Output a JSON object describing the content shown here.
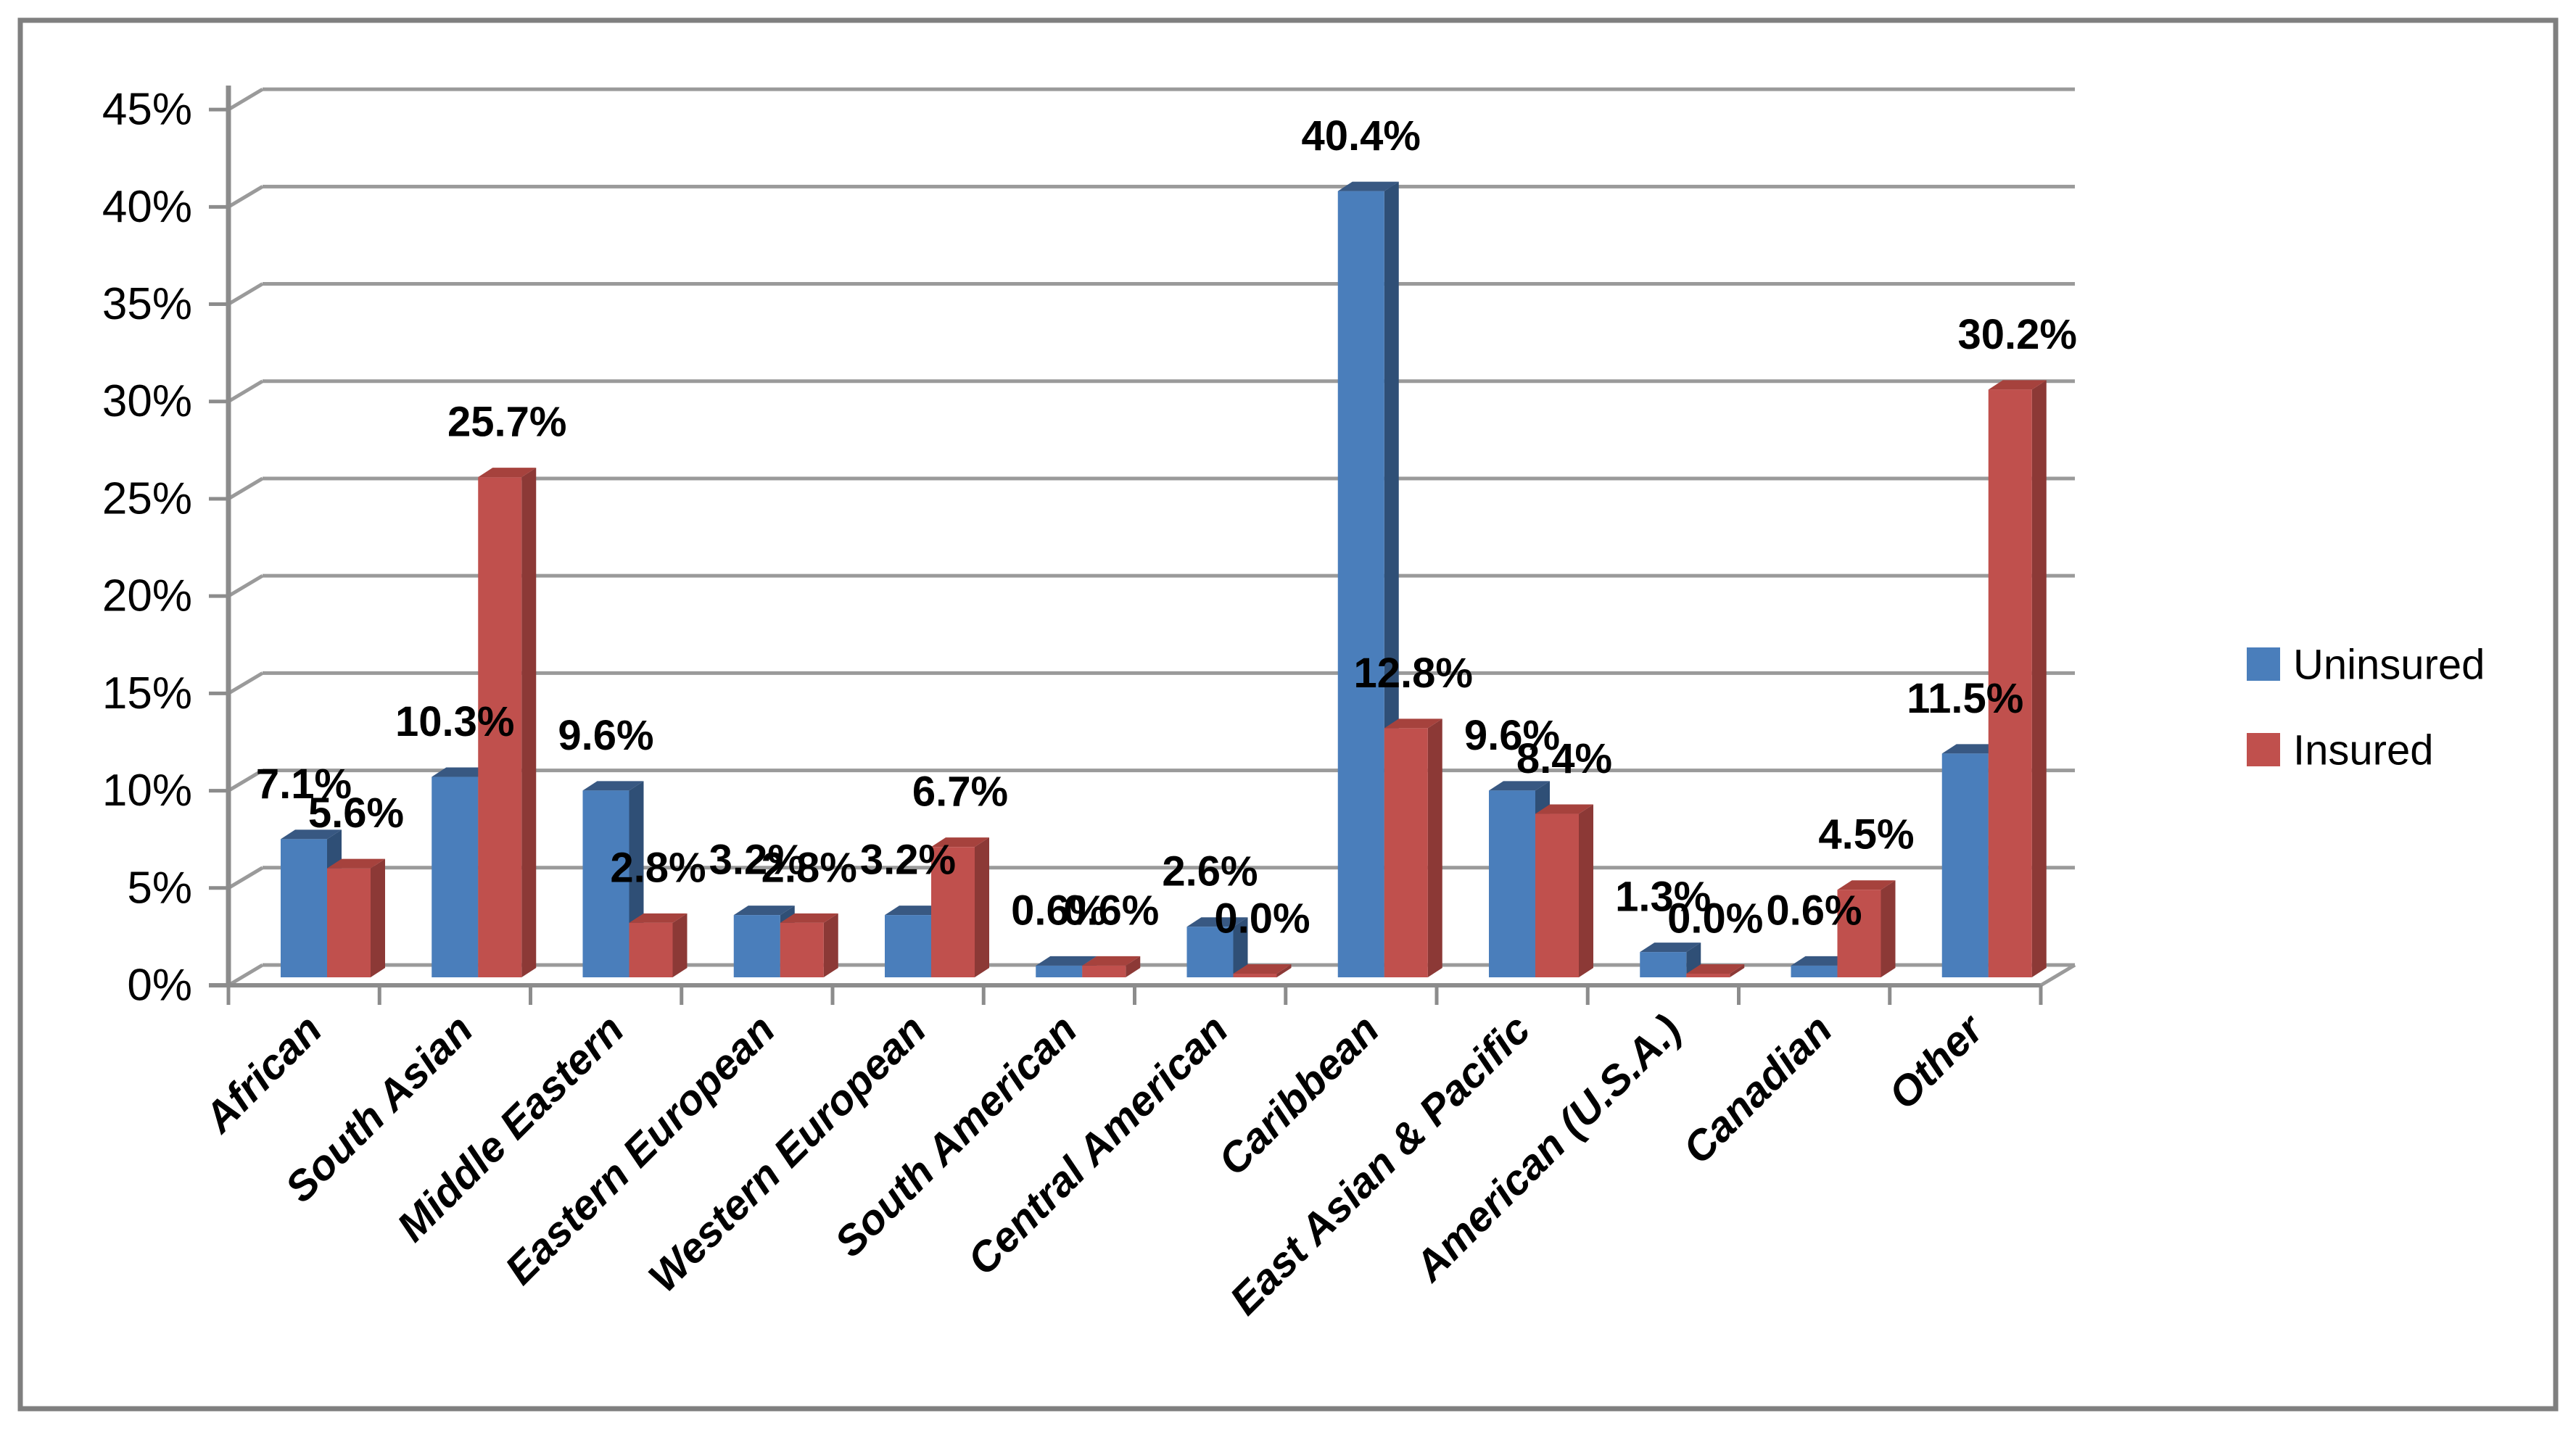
{
  "chart_data": {
    "type": "bar",
    "style": "3d-clustered-column",
    "title": "",
    "xlabel": "",
    "ylabel": "",
    "grid": true,
    "categories": [
      "African",
      "South Asian",
      "Middle Eastern",
      "Eastern European",
      "Western European",
      "South American",
      "Central American",
      "Caribbean",
      "East Asian & Pacific",
      "American (U.S.A.)",
      "Canadian",
      "Other"
    ],
    "series": [
      {
        "name": "Uninsured",
        "color": "#4A7EBB",
        "color_top": "#385882",
        "color_side": "#2F4F76",
        "values": [
          7.1,
          10.3,
          9.6,
          3.2,
          3.2,
          0.6,
          2.6,
          40.4,
          9.6,
          1.3,
          0.6,
          11.5
        ]
      },
      {
        "name": "Insured",
        "color": "#C0504D",
        "color_top": "#A6423D",
        "color_side": "#8C3936",
        "values": [
          5.6,
          25.7,
          2.8,
          2.8,
          6.7,
          0.6,
          0.0,
          12.8,
          8.4,
          0.0,
          4.5,
          30.2
        ]
      }
    ],
    "value_labels": [
      [
        "7.1%",
        "10.3%",
        "9.6%",
        "3.2%",
        "3.2%",
        "0.6%",
        "2.6%",
        "40.4%",
        "9.6%",
        "1.3%",
        "0.6%",
        "11.5%"
      ],
      [
        "5.6%",
        "25.7%",
        "2.8%",
        "2.8%",
        "6.7%",
        "0.6%",
        "0.0%",
        "12.8%",
        "8.4%",
        "0.0%",
        "4.5%",
        "30.2%"
      ]
    ],
    "y_axis": {
      "min": 0,
      "max": 45,
      "step": 5,
      "ticks": [
        "45%",
        "40%",
        "35%",
        "30%",
        "25%",
        "20%",
        "15%",
        "10%",
        "5%",
        "0%"
      ]
    },
    "legend": {
      "position": "right",
      "entries": [
        {
          "label": "Uninsured",
          "color": "#4A7EBB"
        },
        {
          "label": "Insured",
          "color": "#C0504D"
        }
      ]
    },
    "frame_color": "#7F7F7F",
    "gridline_color": "#9A9A9A",
    "axis_color": "#8C8C8C"
  }
}
